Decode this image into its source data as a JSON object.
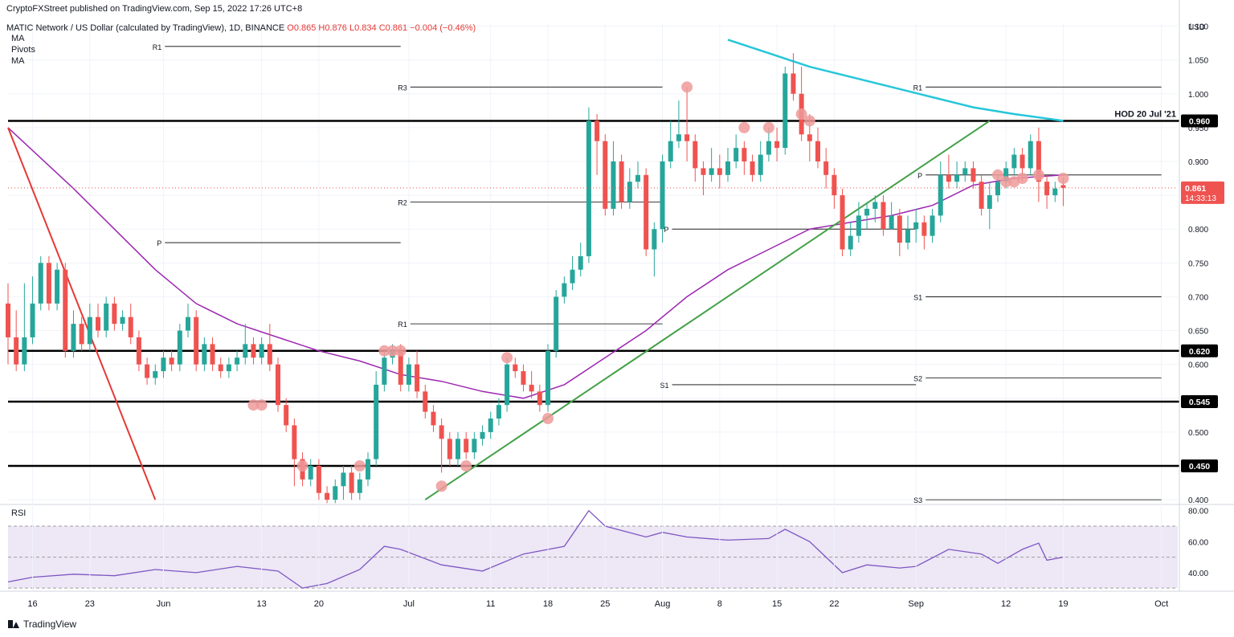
{
  "header": {
    "published": "CryptoFXStreet published on TradingView.com, Sep 15, 2022 17:26 UTC+8",
    "symbol": "MATIC Network / US Dollar (calculated by TradingView), 1D, BINANCE",
    "open": "O0.865",
    "high": "H0.876",
    "low": "L0.834",
    "close": "C0.861",
    "change": "−0.004 (−0.46%)",
    "indicators": [
      "MA",
      "Pivots",
      "MA"
    ]
  },
  "footer": {
    "brand": "TradingView"
  },
  "colors": {
    "up": "#26a69a",
    "down": "#ef5350",
    "ma_fast": "#9c27b0",
    "ma_slow": "#26c6da",
    "trend_up": "#43a047",
    "trend_down": "#e53935",
    "rsi": "#7e57c2",
    "rsi_band": "#ede7f6",
    "marker": "#ef9a9a"
  },
  "chart_data": {
    "type": "candlestick",
    "title": "",
    "currency_label": "USD",
    "y_ticks": [
      "1.100",
      "1.050",
      "1.000",
      "0.950",
      "0.900",
      "0.850",
      "0.800",
      "0.750",
      "0.700",
      "0.650",
      "0.600",
      "0.550",
      "0.500",
      "0.450",
      "0.400"
    ],
    "ylim": [
      0.393,
      1.103
    ],
    "x_ticks": [
      "16",
      "23",
      "Jun",
      "13",
      "20",
      "Jul",
      "11",
      "18",
      "25",
      "Aug",
      "8",
      "15",
      "22",
      "Sep",
      "12",
      "19",
      "Oct"
    ],
    "x_tick_days": [
      0,
      7,
      16,
      28,
      35,
      46,
      56,
      63,
      70,
      77,
      84,
      91,
      98,
      108,
      119,
      126,
      138
    ],
    "first_day": "May 16",
    "last_price": {
      "value": "0.861",
      "countdown": "14:33:13"
    },
    "candles": [
      [
        -3,
        0.69,
        0.64,
        0.72,
        0.6
      ],
      [
        -2,
        0.64,
        0.6,
        0.68,
        0.59
      ],
      [
        -1,
        0.6,
        0.64,
        0.72,
        0.59
      ],
      [
        0,
        0.64,
        0.69,
        0.73,
        0.63
      ],
      [
        1,
        0.69,
        0.75,
        0.76,
        0.68
      ],
      [
        2,
        0.75,
        0.69,
        0.76,
        0.68
      ],
      [
        3,
        0.69,
        0.74,
        0.75,
        0.68
      ],
      [
        4,
        0.74,
        0.62,
        0.75,
        0.61
      ],
      [
        5,
        0.62,
        0.66,
        0.68,
        0.61
      ],
      [
        6,
        0.66,
        0.63,
        0.67,
        0.62
      ],
      [
        7,
        0.63,
        0.67,
        0.69,
        0.62
      ],
      [
        8,
        0.67,
        0.65,
        0.69,
        0.64
      ],
      [
        9,
        0.65,
        0.69,
        0.7,
        0.64
      ],
      [
        10,
        0.69,
        0.66,
        0.7,
        0.65
      ],
      [
        11,
        0.66,
        0.67,
        0.68,
        0.65
      ],
      [
        12,
        0.67,
        0.64,
        0.69,
        0.63
      ],
      [
        13,
        0.64,
        0.6,
        0.65,
        0.59
      ],
      [
        14,
        0.6,
        0.58,
        0.61,
        0.57
      ],
      [
        15,
        0.58,
        0.59,
        0.6,
        0.57
      ],
      [
        16,
        0.59,
        0.61,
        0.62,
        0.58
      ],
      [
        17,
        0.61,
        0.6,
        0.62,
        0.59
      ],
      [
        18,
        0.6,
        0.65,
        0.66,
        0.59
      ],
      [
        19,
        0.65,
        0.67,
        0.69,
        0.64
      ],
      [
        20,
        0.67,
        0.6,
        0.68,
        0.59
      ],
      [
        21,
        0.6,
        0.63,
        0.64,
        0.59
      ],
      [
        22,
        0.63,
        0.6,
        0.64,
        0.59
      ],
      [
        23,
        0.6,
        0.59,
        0.61,
        0.58
      ],
      [
        24,
        0.59,
        0.6,
        0.61,
        0.58
      ],
      [
        25,
        0.6,
        0.61,
        0.62,
        0.59
      ],
      [
        26,
        0.61,
        0.63,
        0.66,
        0.6
      ],
      [
        27,
        0.63,
        0.61,
        0.64,
        0.6
      ],
      [
        28,
        0.61,
        0.63,
        0.64,
        0.6
      ],
      [
        29,
        0.63,
        0.6,
        0.66,
        0.59
      ],
      [
        30,
        0.6,
        0.54,
        0.61,
        0.53
      ],
      [
        31,
        0.54,
        0.51,
        0.55,
        0.5
      ],
      [
        32,
        0.51,
        0.46,
        0.52,
        0.42
      ],
      [
        33,
        0.46,
        0.43,
        0.47,
        0.42
      ],
      [
        34,
        0.43,
        0.45,
        0.46,
        0.42
      ],
      [
        35,
        0.45,
        0.41,
        0.46,
        0.4
      ],
      [
        36,
        0.41,
        0.4,
        0.42,
        0.395
      ],
      [
        37,
        0.4,
        0.42,
        0.43,
        0.395
      ],
      [
        38,
        0.42,
        0.44,
        0.45,
        0.4
      ],
      [
        39,
        0.44,
        0.41,
        0.45,
        0.4
      ],
      [
        40,
        0.41,
        0.43,
        0.44,
        0.4
      ],
      [
        41,
        0.43,
        0.46,
        0.47,
        0.42
      ],
      [
        42,
        0.46,
        0.57,
        0.59,
        0.45
      ],
      [
        43,
        0.57,
        0.61,
        0.62,
        0.56
      ],
      [
        44,
        0.61,
        0.62,
        0.63,
        0.6
      ],
      [
        45,
        0.62,
        0.57,
        0.63,
        0.56
      ],
      [
        46,
        0.57,
        0.6,
        0.61,
        0.56
      ],
      [
        47,
        0.6,
        0.56,
        0.62,
        0.55
      ],
      [
        48,
        0.56,
        0.53,
        0.57,
        0.52
      ],
      [
        49,
        0.53,
        0.51,
        0.54,
        0.5
      ],
      [
        50,
        0.51,
        0.49,
        0.52,
        0.44
      ],
      [
        51,
        0.49,
        0.46,
        0.5,
        0.45
      ],
      [
        52,
        0.46,
        0.49,
        0.5,
        0.45
      ],
      [
        53,
        0.49,
        0.47,
        0.5,
        0.46
      ],
      [
        54,
        0.47,
        0.49,
        0.5,
        0.46
      ],
      [
        55,
        0.49,
        0.5,
        0.51,
        0.48
      ],
      [
        56,
        0.5,
        0.52,
        0.53,
        0.49
      ],
      [
        57,
        0.52,
        0.54,
        0.55,
        0.51
      ],
      [
        58,
        0.54,
        0.6,
        0.61,
        0.53
      ],
      [
        59,
        0.6,
        0.59,
        0.61,
        0.58
      ],
      [
        60,
        0.59,
        0.57,
        0.6,
        0.56
      ],
      [
        61,
        0.57,
        0.56,
        0.59,
        0.55
      ],
      [
        62,
        0.56,
        0.54,
        0.57,
        0.53
      ],
      [
        63,
        0.54,
        0.62,
        0.63,
        0.53
      ],
      [
        64,
        0.62,
        0.7,
        0.71,
        0.61
      ],
      [
        65,
        0.7,
        0.72,
        0.73,
        0.69
      ],
      [
        66,
        0.72,
        0.74,
        0.76,
        0.71
      ],
      [
        67,
        0.74,
        0.76,
        0.78,
        0.73
      ],
      [
        68,
        0.76,
        0.96,
        0.98,
        0.75
      ],
      [
        69,
        0.96,
        0.93,
        0.97,
        0.88
      ],
      [
        70,
        0.93,
        0.83,
        0.94,
        0.82
      ],
      [
        71,
        0.83,
        0.9,
        0.93,
        0.82
      ],
      [
        72,
        0.9,
        0.84,
        0.91,
        0.83
      ],
      [
        73,
        0.84,
        0.87,
        0.89,
        0.83
      ],
      [
        74,
        0.87,
        0.88,
        0.9,
        0.86
      ],
      [
        75,
        0.88,
        0.77,
        0.89,
        0.76
      ],
      [
        76,
        0.77,
        0.8,
        0.81,
        0.73
      ],
      [
        77,
        0.8,
        0.9,
        0.91,
        0.78
      ],
      [
        78,
        0.9,
        0.93,
        0.96,
        0.89
      ],
      [
        79,
        0.93,
        0.94,
        0.99,
        0.92
      ],
      [
        80,
        0.94,
        0.93,
        1.01,
        0.9
      ],
      [
        81,
        0.93,
        0.89,
        0.94,
        0.87
      ],
      [
        82,
        0.89,
        0.88,
        0.9,
        0.85
      ],
      [
        83,
        0.88,
        0.89,
        0.92,
        0.87
      ],
      [
        84,
        0.89,
        0.88,
        0.91,
        0.86
      ],
      [
        85,
        0.88,
        0.9,
        0.92,
        0.87
      ],
      [
        86,
        0.9,
        0.92,
        0.94,
        0.89
      ],
      [
        87,
        0.92,
        0.9,
        0.93,
        0.88
      ],
      [
        88,
        0.9,
        0.88,
        0.91,
        0.87
      ],
      [
        89,
        0.88,
        0.91,
        0.93,
        0.87
      ],
      [
        90,
        0.91,
        0.93,
        0.95,
        0.9
      ],
      [
        91,
        0.93,
        0.92,
        0.95,
        0.9
      ],
      [
        92,
        0.92,
        1.03,
        1.04,
        0.91
      ],
      [
        93,
        1.03,
        1.0,
        1.06,
        0.99
      ],
      [
        94,
        1.0,
        0.94,
        1.04,
        0.93
      ],
      [
        95,
        0.94,
        0.93,
        0.97,
        0.9
      ],
      [
        96,
        0.93,
        0.9,
        0.95,
        0.89
      ],
      [
        97,
        0.9,
        0.88,
        0.92,
        0.86
      ],
      [
        98,
        0.88,
        0.85,
        0.89,
        0.83
      ],
      [
        99,
        0.85,
        0.77,
        0.86,
        0.76
      ],
      [
        100,
        0.77,
        0.79,
        0.81,
        0.76
      ],
      [
        101,
        0.79,
        0.82,
        0.84,
        0.78
      ],
      [
        102,
        0.82,
        0.83,
        0.84,
        0.8
      ],
      [
        103,
        0.83,
        0.84,
        0.85,
        0.81
      ],
      [
        104,
        0.84,
        0.8,
        0.85,
        0.79
      ],
      [
        105,
        0.8,
        0.82,
        0.84,
        0.8
      ],
      [
        106,
        0.82,
        0.78,
        0.83,
        0.76
      ],
      [
        107,
        0.78,
        0.8,
        0.82,
        0.77
      ],
      [
        108,
        0.8,
        0.81,
        0.83,
        0.78
      ],
      [
        109,
        0.81,
        0.79,
        0.82,
        0.77
      ],
      [
        110,
        0.79,
        0.82,
        0.83,
        0.78
      ],
      [
        111,
        0.82,
        0.88,
        0.9,
        0.81
      ],
      [
        112,
        0.88,
        0.87,
        0.91,
        0.86
      ],
      [
        113,
        0.87,
        0.88,
        0.9,
        0.86
      ],
      [
        114,
        0.88,
        0.89,
        0.9,
        0.87
      ],
      [
        115,
        0.89,
        0.87,
        0.9,
        0.86
      ],
      [
        116,
        0.87,
        0.83,
        0.88,
        0.82
      ],
      [
        117,
        0.83,
        0.85,
        0.87,
        0.8
      ],
      [
        118,
        0.85,
        0.87,
        0.88,
        0.84
      ],
      [
        119,
        0.87,
        0.89,
        0.9,
        0.86
      ],
      [
        120,
        0.89,
        0.91,
        0.92,
        0.88
      ],
      [
        121,
        0.91,
        0.89,
        0.92,
        0.87
      ],
      [
        122,
        0.89,
        0.93,
        0.94,
        0.88
      ],
      [
        123,
        0.93,
        0.87,
        0.95,
        0.84
      ],
      [
        124,
        0.87,
        0.85,
        0.88,
        0.83
      ],
      [
        125,
        0.85,
        0.86,
        0.87,
        0.84
      ],
      [
        126,
        0.865,
        0.861,
        0.876,
        0.834
      ]
    ],
    "ma_fast": [
      [
        -3,
        0.95
      ],
      [
        5,
        0.86
      ],
      [
        10,
        0.8
      ],
      [
        15,
        0.74
      ],
      [
        20,
        0.69
      ],
      [
        25,
        0.66
      ],
      [
        30,
        0.64
      ],
      [
        35,
        0.62
      ],
      [
        40,
        0.605
      ],
      [
        45,
        0.585
      ],
      [
        50,
        0.575
      ],
      [
        55,
        0.56
      ],
      [
        60,
        0.55
      ],
      [
        65,
        0.57
      ],
      [
        70,
        0.61
      ],
      [
        75,
        0.65
      ],
      [
        80,
        0.7
      ],
      [
        85,
        0.74
      ],
      [
        90,
        0.77
      ],
      [
        95,
        0.8
      ],
      [
        100,
        0.81
      ],
      [
        105,
        0.82
      ],
      [
        110,
        0.835
      ],
      [
        115,
        0.865
      ],
      [
        120,
        0.875
      ],
      [
        126,
        0.88
      ]
    ],
    "ma_slow": [
      [
        85,
        1.08
      ],
      [
        90,
        1.06
      ],
      [
        95,
        1.04
      ],
      [
        100,
        1.025
      ],
      [
        105,
        1.01
      ],
      [
        110,
        0.995
      ],
      [
        115,
        0.98
      ],
      [
        120,
        0.97
      ],
      [
        126,
        0.96
      ]
    ],
    "horizontal_levels": [
      {
        "value": 0.96,
        "label": "0.960",
        "note": "HOD 20 Jul '21"
      },
      {
        "value": 0.62,
        "label": "0.620"
      },
      {
        "value": 0.545,
        "label": "0.545"
      },
      {
        "value": 0.45,
        "label": "0.450"
      }
    ],
    "pivot_segments": [
      {
        "label": "R1",
        "value": 1.07,
        "x0": 15,
        "x1": 45
      },
      {
        "label": "P",
        "value": 0.78,
        "x0": 15,
        "x1": 45
      },
      {
        "label": "R3",
        "value": 1.01,
        "x0": 45,
        "x1": 77
      },
      {
        "label": "R2",
        "value": 0.84,
        "x0": 45,
        "x1": 77
      },
      {
        "label": "R1",
        "value": 0.66,
        "x0": 45,
        "x1": 77
      },
      {
        "label": "S1",
        "value": 0.57,
        "x0": 77,
        "x1": 108
      },
      {
        "label": "P",
        "value": 0.8,
        "x0": 77,
        "x1": 108
      },
      {
        "label": "R1",
        "value": 1.01,
        "x0": 108,
        "x1": 138
      },
      {
        "label": "P",
        "value": 0.88,
        "x0": 108,
        "x1": 138
      },
      {
        "label": "S1",
        "value": 0.7,
        "x0": 108,
        "x1": 138
      },
      {
        "label": "S2",
        "value": 0.58,
        "x0": 108,
        "x1": 138
      },
      {
        "label": "S3",
        "value": 0.4,
        "x0": 108,
        "x1": 138
      }
    ],
    "trendlines": [
      {
        "color": "up",
        "from": [
          48,
          0.4
        ],
        "to": [
          117,
          0.96
        ]
      },
      {
        "color": "down",
        "from": [
          -3,
          0.95
        ],
        "to": [
          15,
          0.4
        ]
      }
    ],
    "markers": [
      [
        27,
        0.54
      ],
      [
        28,
        0.54
      ],
      [
        33,
        0.45
      ],
      [
        40,
        0.45
      ],
      [
        43,
        0.62
      ],
      [
        44,
        0.62
      ],
      [
        45,
        0.62
      ],
      [
        50,
        0.42
      ],
      [
        53,
        0.45
      ],
      [
        58,
        0.61
      ],
      [
        63,
        0.52
      ],
      [
        80,
        1.01
      ],
      [
        87,
        0.95
      ],
      [
        90,
        0.95
      ],
      [
        94,
        0.97
      ],
      [
        95,
        0.96
      ],
      [
        118,
        0.88
      ],
      [
        119,
        0.87
      ],
      [
        120,
        0.87
      ],
      [
        121,
        0.875
      ],
      [
        123,
        0.88
      ],
      [
        126,
        0.875
      ]
    ],
    "rsi": {
      "label": "RSI",
      "y_ticks": [
        "80.00",
        "60.00",
        "40.00"
      ],
      "ylim": [
        28,
        84
      ],
      "band": [
        30,
        70
      ],
      "midline": 50,
      "values": [
        [
          -3,
          34
        ],
        [
          0,
          37
        ],
        [
          5,
          39
        ],
        [
          10,
          38
        ],
        [
          15,
          42
        ],
        [
          20,
          40
        ],
        [
          25,
          44
        ],
        [
          30,
          41
        ],
        [
          33,
          30
        ],
        [
          36,
          33
        ],
        [
          40,
          42
        ],
        [
          43,
          57
        ],
        [
          45,
          55
        ],
        [
          50,
          45
        ],
        [
          55,
          41
        ],
        [
          60,
          52
        ],
        [
          65,
          57
        ],
        [
          68,
          80
        ],
        [
          70,
          70
        ],
        [
          75,
          63
        ],
        [
          77,
          66
        ],
        [
          80,
          63
        ],
        [
          85,
          61
        ],
        [
          90,
          62
        ],
        [
          92,
          68
        ],
        [
          95,
          60
        ],
        [
          99,
          40
        ],
        [
          102,
          45
        ],
        [
          106,
          43
        ],
        [
          108,
          44
        ],
        [
          112,
          55
        ],
        [
          116,
          52
        ],
        [
          118,
          46
        ],
        [
          121,
          55
        ],
        [
          123,
          59
        ],
        [
          124,
          48
        ],
        [
          126,
          50
        ]
      ]
    }
  }
}
